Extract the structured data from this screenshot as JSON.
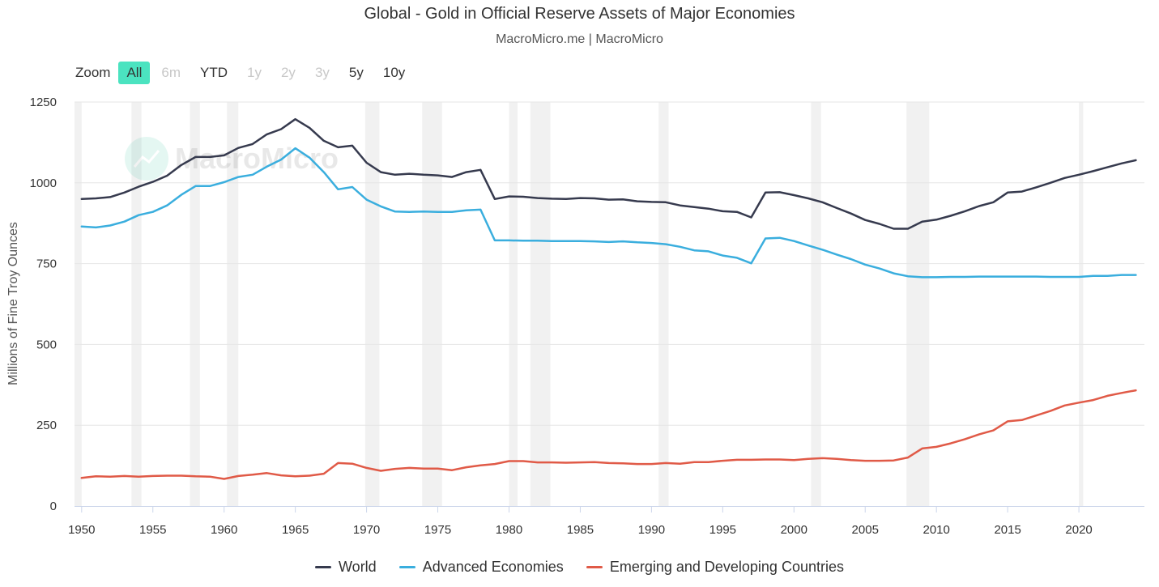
{
  "header": {
    "title": "Global - Gold in Official Reserve Assets of Major Economies",
    "subtitle": "MacroMicro.me | MacroMicro",
    "watermark": "MacroMicro"
  },
  "zoom": {
    "label": "Zoom",
    "buttons": [
      {
        "label": "All",
        "state": "active"
      },
      {
        "label": "6m",
        "state": "disabled"
      },
      {
        "label": "YTD",
        "state": "enabled"
      },
      {
        "label": "1y",
        "state": "disabled"
      },
      {
        "label": "2y",
        "state": "disabled"
      },
      {
        "label": "3y",
        "state": "disabled"
      },
      {
        "label": "5y",
        "state": "enabled"
      },
      {
        "label": "10y",
        "state": "enabled"
      }
    ]
  },
  "chart_data": {
    "type": "line",
    "title": "Global - Gold in Official Reserve Assets of Major Economies",
    "ylabel": "Millions of Fine Troy Ounces",
    "xlabel": "",
    "xlim": [
      1949.5,
      2024.6
    ],
    "ylim": [
      0,
      1250
    ],
    "xticks": [
      1950,
      1955,
      1960,
      1965,
      1970,
      1975,
      1980,
      1985,
      1990,
      1995,
      2000,
      2005,
      2010,
      2015,
      2020
    ],
    "yticks": [
      0,
      250,
      500,
      750,
      1000,
      1250
    ],
    "grid": true,
    "legend": "bottom",
    "recession_bands": [
      [
        1949.5,
        1950.0
      ],
      [
        1953.5,
        1954.2
      ],
      [
        1957.6,
        1958.3
      ],
      [
        1960.2,
        1961.0
      ],
      [
        1969.9,
        1970.9
      ],
      [
        1973.9,
        1975.3
      ],
      [
        1980.0,
        1980.6
      ],
      [
        1981.5,
        1982.9
      ],
      [
        1990.5,
        1991.2
      ],
      [
        2001.2,
        2001.9
      ],
      [
        2007.9,
        2009.5
      ],
      [
        2020.0,
        2020.3
      ]
    ],
    "x": [
      1950,
      1951,
      1952,
      1953,
      1954,
      1955,
      1956,
      1957,
      1958,
      1959,
      1960,
      1961,
      1962,
      1963,
      1964,
      1965,
      1966,
      1967,
      1968,
      1969,
      1970,
      1971,
      1972,
      1973,
      1974,
      1975,
      1976,
      1977,
      1978,
      1979,
      1980,
      1981,
      1982,
      1983,
      1984,
      1985,
      1986,
      1987,
      1988,
      1989,
      1990,
      1991,
      1992,
      1993,
      1994,
      1995,
      1996,
      1997,
      1998,
      1999,
      2000,
      2001,
      2002,
      2003,
      2004,
      2005,
      2006,
      2007,
      2008,
      2009,
      2010,
      2011,
      2012,
      2013,
      2014,
      2015,
      2016,
      2017,
      2018,
      2019,
      2020,
      2021,
      2022,
      2023,
      2024
    ],
    "series": [
      {
        "name": "World",
        "color": "#363a4e",
        "values": [
          950,
          952,
          956,
          970,
          988,
          1003,
          1022,
          1055,
          1080,
          1080,
          1085,
          1108,
          1120,
          1150,
          1166,
          1197,
          1170,
          1130,
          1110,
          1115,
          1062,
          1033,
          1025,
          1028,
          1025,
          1023,
          1018,
          1033,
          1040,
          950,
          958,
          957,
          953,
          951,
          950,
          953,
          952,
          948,
          949,
          943,
          941,
          940,
          930,
          925,
          920,
          912,
          910,
          893,
          970,
          971,
          962,
          952,
          940,
          922,
          905,
          885,
          873,
          858,
          858,
          880,
          886,
          898,
          912,
          928,
          940,
          970,
          973,
          986,
          1000,
          1015,
          1025,
          1036,
          1048,
          1060,
          1070
        ]
      },
      {
        "name": "Advanced Economies",
        "color": "#3aaede",
        "values": [
          865,
          862,
          868,
          880,
          900,
          910,
          930,
          963,
          990,
          990,
          1002,
          1018,
          1025,
          1050,
          1072,
          1107,
          1078,
          1033,
          980,
          987,
          948,
          927,
          911,
          910,
          911,
          910,
          910,
          915,
          917,
          822,
          822,
          821,
          821,
          820,
          820,
          820,
          819,
          817,
          819,
          816,
          814,
          810,
          802,
          791,
          788,
          775,
          768,
          751,
          828,
          830,
          820,
          806,
          793,
          778,
          764,
          747,
          735,
          720,
          711,
          708,
          708,
          709,
          709,
          710,
          710,
          710,
          710,
          710,
          709,
          709,
          709,
          712,
          712,
          715,
          715
        ]
      },
      {
        "name": "Emerging and Developing Countries",
        "color": "#e05a47",
        "values": [
          87,
          92,
          91,
          93,
          91,
          93,
          94,
          94,
          92,
          91,
          84,
          93,
          97,
          102,
          95,
          92,
          94,
          100,
          133,
          131,
          118,
          109,
          115,
          118,
          116,
          116,
          111,
          120,
          126,
          130,
          139,
          139,
          135,
          135,
          134,
          135,
          136,
          133,
          132,
          130,
          130,
          133,
          131,
          136,
          136,
          140,
          143,
          143,
          144,
          144,
          142,
          146,
          148,
          146,
          142,
          140,
          140,
          141,
          150,
          178,
          183,
          194,
          207,
          222,
          234,
          262,
          266,
          280,
          294,
          311,
          320,
          328,
          341,
          350,
          358
        ]
      }
    ]
  }
}
